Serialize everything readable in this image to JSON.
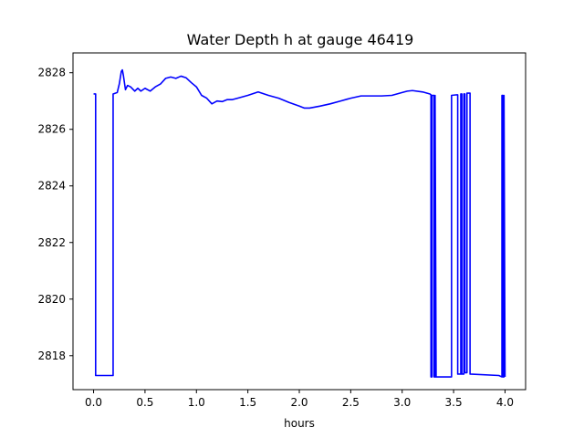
{
  "chart_data": {
    "type": "line",
    "title": "Water Depth h at gauge 46419",
    "xlabel": "hours",
    "ylabel": "",
    "xlim": [
      -0.2,
      4.2
    ],
    "ylim": [
      2816.8,
      2828.7
    ],
    "xticks": [
      0.0,
      0.5,
      1.0,
      1.5,
      2.0,
      2.5,
      3.0,
      3.5,
      4.0
    ],
    "xtick_labels": [
      "0.0",
      "0.5",
      "1.0",
      "1.5",
      "2.0",
      "2.5",
      "3.0",
      "3.5",
      "4.0"
    ],
    "yticks": [
      2818,
      2820,
      2822,
      2824,
      2826,
      2828
    ],
    "ytick_labels": [
      "2818",
      "2820",
      "2822",
      "2824",
      "2826",
      "2828"
    ],
    "grid": false,
    "series": [
      {
        "color": "#0000ff",
        "x": [
          0.0,
          0.02,
          0.02,
          0.19,
          0.19,
          0.23,
          0.25,
          0.27,
          0.28,
          0.29,
          0.31,
          0.33,
          0.36,
          0.4,
          0.43,
          0.46,
          0.5,
          0.55,
          0.6,
          0.65,
          0.7,
          0.75,
          0.8,
          0.85,
          0.9,
          0.95,
          1.0,
          1.05,
          1.1,
          1.15,
          1.2,
          1.25,
          1.3,
          1.35,
          1.4,
          1.5,
          1.6,
          1.7,
          1.8,
          1.9,
          2.0,
          2.05,
          2.1,
          2.2,
          2.3,
          2.4,
          2.5,
          2.6,
          2.7,
          2.8,
          2.9,
          3.0,
          3.05,
          3.1,
          3.2,
          3.27,
          3.28,
          3.28,
          3.29,
          3.29,
          3.305,
          3.31,
          3.31,
          3.32,
          3.32,
          3.33,
          3.48,
          3.48,
          3.53,
          3.54,
          3.54,
          3.57,
          3.57,
          3.58,
          3.58,
          3.6,
          3.6,
          3.61,
          3.61,
          3.63,
          3.63,
          3.65,
          3.65,
          3.66,
          3.66,
          3.94,
          3.97,
          3.97,
          3.98,
          3.98,
          3.99,
          3.99,
          4.0
        ],
        "y": [
          2827.25,
          2827.25,
          2817.3,
          2817.3,
          2827.25,
          2827.3,
          2827.6,
          2828.05,
          2828.1,
          2827.9,
          2827.4,
          2827.55,
          2827.5,
          2827.35,
          2827.45,
          2827.35,
          2827.45,
          2827.35,
          2827.5,
          2827.6,
          2827.8,
          2827.85,
          2827.8,
          2827.88,
          2827.82,
          2827.65,
          2827.5,
          2827.2,
          2827.1,
          2826.9,
          2827.0,
          2826.98,
          2827.05,
          2827.05,
          2827.1,
          2827.2,
          2827.32,
          2827.2,
          2827.1,
          2826.95,
          2826.82,
          2826.75,
          2826.75,
          2826.82,
          2826.9,
          2827.0,
          2827.1,
          2827.18,
          2827.18,
          2827.18,
          2827.2,
          2827.3,
          2827.35,
          2827.37,
          2827.32,
          2827.25,
          2827.22,
          2817.25,
          2817.25,
          2827.2,
          2827.2,
          2827.2,
          2817.25,
          2817.25,
          2827.2,
          2817.25,
          2817.25,
          2827.2,
          2827.22,
          2827.22,
          2817.35,
          2817.35,
          2827.25,
          2827.25,
          2817.35,
          2817.35,
          2827.25,
          2827.25,
          2817.4,
          2817.4,
          2827.28,
          2827.28,
          2827.28,
          2827.28,
          2817.35,
          2817.3,
          2817.25,
          2827.2,
          2827.2,
          2817.25,
          2817.25,
          2827.2,
          2817.25
        ]
      }
    ]
  }
}
